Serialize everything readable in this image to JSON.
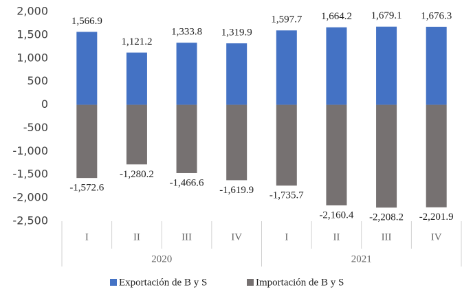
{
  "chart_data": {
    "type": "bar",
    "categories": [
      "I",
      "II",
      "III",
      "IV",
      "I",
      "II",
      "III",
      "IV"
    ],
    "group_labels": [
      "2020",
      "2021"
    ],
    "series": [
      {
        "name": "Exportación de B y S",
        "color": "#4472c4",
        "values": [
          1566.9,
          1121.2,
          1333.8,
          1319.9,
          1597.7,
          1664.2,
          1679.1,
          1676.3
        ],
        "value_labels": [
          "1,566.9",
          "1,121.2",
          "1,333.8",
          "1,319.9",
          "1,597.7",
          "1,664.2",
          "1,679.1",
          "1,676.3"
        ]
      },
      {
        "name": "Importación de B y S",
        "color": "#767171",
        "values": [
          -1572.6,
          -1280.2,
          -1466.6,
          -1619.9,
          -1735.7,
          -2160.4,
          -2208.2,
          -2201.9
        ],
        "value_labels": [
          "-1,572.6",
          "-1,280.2",
          "-1,466.6",
          "-1,619.9",
          "-1,735.7",
          "-2,160.4",
          "-2,208.2",
          "-2,201.9"
        ]
      }
    ],
    "ylim": [
      -2500,
      2000
    ],
    "yticks": [
      {
        "value": -2500,
        "label": "-2,500"
      },
      {
        "value": -2000,
        "label": "-2,000"
      },
      {
        "value": -1500,
        "label": "-1,500"
      },
      {
        "value": -1000,
        "label": "-1,000"
      },
      -500,
      0,
      500,
      {
        "value": 1000,
        "label": "1,000"
      },
      {
        "value": 1500,
        "label": "1,500"
      },
      {
        "value": 2000,
        "label": "2,000"
      }
    ],
    "grid": false,
    "legend": "bottom"
  }
}
